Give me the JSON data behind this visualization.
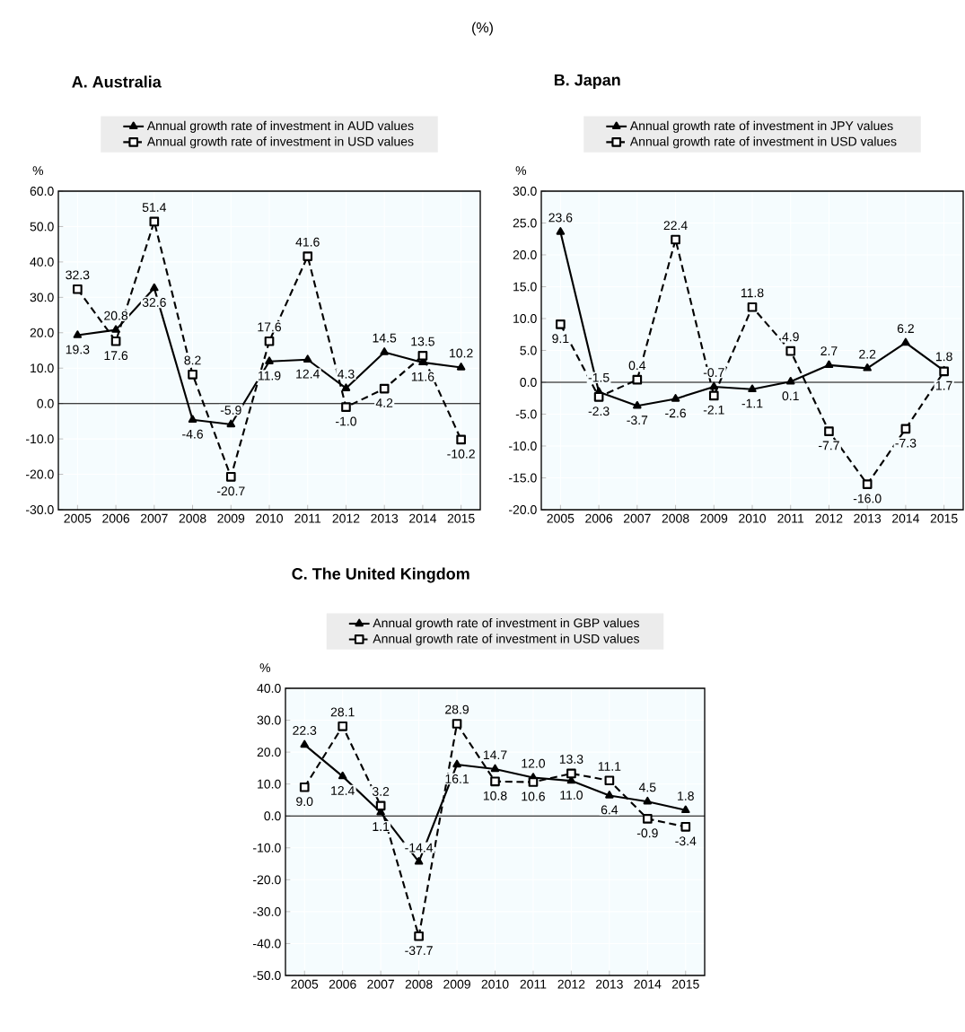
{
  "chart_data": [
    {
      "type": "line",
      "subtitle": "(%)",
      "title": "A. Australia",
      "ylabel": "%",
      "categories": [
        "2005",
        "2006",
        "2007",
        "2008",
        "2009",
        "2010",
        "2011",
        "2012",
        "2013",
        "2014",
        "2015"
      ],
      "series": [
        {
          "name": "Annual growth rate of investment in AUD values",
          "color": "#000000",
          "marker": "triangle",
          "line_style": "solid",
          "values": [
            19.3,
            20.8,
            32.6,
            -4.6,
            -5.9,
            11.9,
            12.4,
            4.3,
            14.5,
            11.6,
            10.2
          ],
          "value_labels": [
            "19.3",
            "20.8",
            "32.6",
            "-4.6",
            "-5.9",
            "11.9",
            "12.4",
            "4.3",
            "14.5",
            "11.6",
            "10.2"
          ]
        },
        {
          "name": "Annual growth rate of investment in USD values",
          "color": "#000000",
          "marker": "square",
          "line_style": "dashed",
          "values": [
            32.3,
            17.6,
            51.4,
            8.2,
            -20.7,
            17.6,
            41.6,
            -1.0,
            4.2,
            13.5,
            -10.2
          ],
          "value_labels": [
            "32.3",
            "17.6",
            "51.4",
            "8.2",
            "-20.7",
            "17.6",
            "41.6",
            "-1.0",
            "4.2",
            "13.5",
            "-10.2"
          ]
        }
      ],
      "ylim": [
        -30,
        60
      ],
      "yticks": [
        {
          "value": -30,
          "label": "-30.0"
        },
        {
          "value": -20,
          "label": "-20.0"
        },
        {
          "value": -10,
          "label": "-10.0"
        },
        {
          "value": 0,
          "label": "0.0"
        },
        {
          "value": 10,
          "label": "10.0"
        },
        {
          "value": 20,
          "label": "20.0"
        },
        {
          "value": 30,
          "label": "30.0"
        },
        {
          "value": 40,
          "label": "40.0"
        },
        {
          "value": 50,
          "label": "50.0"
        },
        {
          "value": 60,
          "label": "60.0"
        }
      ],
      "ref_lines": [
        {
          "axis": "y",
          "value": 0
        }
      ],
      "grid": true,
      "legend": "top"
    },
    {
      "type": "line",
      "title": "B. Japan",
      "ylabel": "%",
      "categories": [
        "2005",
        "2006",
        "2007",
        "2008",
        "2009",
        "2010",
        "2011",
        "2012",
        "2013",
        "2014",
        "2015"
      ],
      "series": [
        {
          "name": "Annual growth rate of investment in JPY values",
          "color": "#000000",
          "marker": "triangle",
          "line_style": "solid",
          "values": [
            23.6,
            -1.5,
            -3.7,
            -2.6,
            -0.7,
            -1.1,
            0.1,
            2.7,
            2.2,
            6.2,
            1.8
          ],
          "value_labels": [
            "23.6",
            "-1.5",
            "-3.7",
            "-2.6",
            "-0.7",
            "-1.1",
            "0.1",
            "2.7",
            "2.2",
            "6.2",
            "1.8"
          ]
        },
        {
          "name": "Annual growth rate of investment in USD values",
          "color": "#000000",
          "marker": "square",
          "line_style": "dashed",
          "values": [
            9.1,
            -2.3,
            0.4,
            22.4,
            -2.1,
            11.8,
            4.9,
            -7.7,
            -16.0,
            -7.3,
            1.7
          ],
          "value_labels": [
            "9.1",
            "-2.3",
            "0.4",
            "22.4",
            "-2.1",
            "11.8",
            "4.9",
            "-7.7",
            "-16.0",
            "-7.3",
            "1.7"
          ]
        }
      ],
      "ylim": [
        -20,
        30
      ],
      "yticks": [
        {
          "value": -20,
          "label": "-20.0"
        },
        {
          "value": -15,
          "label": "-15.0"
        },
        {
          "value": -10,
          "label": "-10.0"
        },
        {
          "value": -5,
          "label": "-5.0"
        },
        {
          "value": 0,
          "label": "0.0"
        },
        {
          "value": 5,
          "label": "5.0"
        },
        {
          "value": 10,
          "label": "10.0"
        },
        {
          "value": 15,
          "label": "15.0"
        },
        {
          "value": 20,
          "label": "20.0"
        },
        {
          "value": 25,
          "label": "25.0"
        },
        {
          "value": 30,
          "label": "30.0"
        }
      ],
      "ref_lines": [
        {
          "axis": "y",
          "value": 0
        }
      ],
      "grid": true,
      "legend": "top"
    },
    {
      "type": "line",
      "title": "C. The United Kingdom",
      "ylabel": "%",
      "categories": [
        "2005",
        "2006",
        "2007",
        "2008",
        "2009",
        "2010",
        "2011",
        "2012",
        "2013",
        "2014",
        "2015"
      ],
      "series": [
        {
          "name": "Annual growth rate of investment in GBP values",
          "color": "#000000",
          "marker": "triangle",
          "line_style": "solid",
          "values": [
            22.3,
            12.4,
            1.1,
            -14.4,
            16.1,
            14.7,
            12.0,
            11.0,
            6.4,
            4.5,
            1.8
          ],
          "value_labels": [
            "22.3",
            "12.4",
            "1.1",
            "-14.4",
            "16.1",
            "14.7",
            "12.0",
            "11.0",
            "6.4",
            "4.5",
            "1.8"
          ]
        },
        {
          "name": "Annual growth rate of investment in USD values",
          "color": "#000000",
          "marker": "square",
          "line_style": "dashed",
          "values": [
            9.0,
            28.1,
            3.2,
            -37.7,
            28.9,
            10.8,
            10.6,
            13.3,
            11.1,
            -0.9,
            -3.4
          ],
          "value_labels": [
            "9.0",
            "28.1",
            "3.2",
            "-37.7",
            "28.9",
            "10.8",
            "10.6",
            "13.3",
            "11.1",
            "-0.9",
            "-3.4"
          ]
        }
      ],
      "ylim": [
        -50,
        40
      ],
      "yticks": [
        {
          "value": -50,
          "label": "-50.0"
        },
        {
          "value": -40,
          "label": "-40.0"
        },
        {
          "value": -30,
          "label": "-30.0"
        },
        {
          "value": -20,
          "label": "-20.0"
        },
        {
          "value": -10,
          "label": "-10.0"
        },
        {
          "value": 0,
          "label": "0.0"
        },
        {
          "value": 10,
          "label": "10.0"
        },
        {
          "value": 20,
          "label": "20.0"
        },
        {
          "value": 30,
          "label": "30.0"
        },
        {
          "value": 40,
          "label": "40.0"
        }
      ],
      "ref_lines": [
        {
          "axis": "y",
          "value": 0
        }
      ],
      "grid": true,
      "legend": "top"
    }
  ]
}
